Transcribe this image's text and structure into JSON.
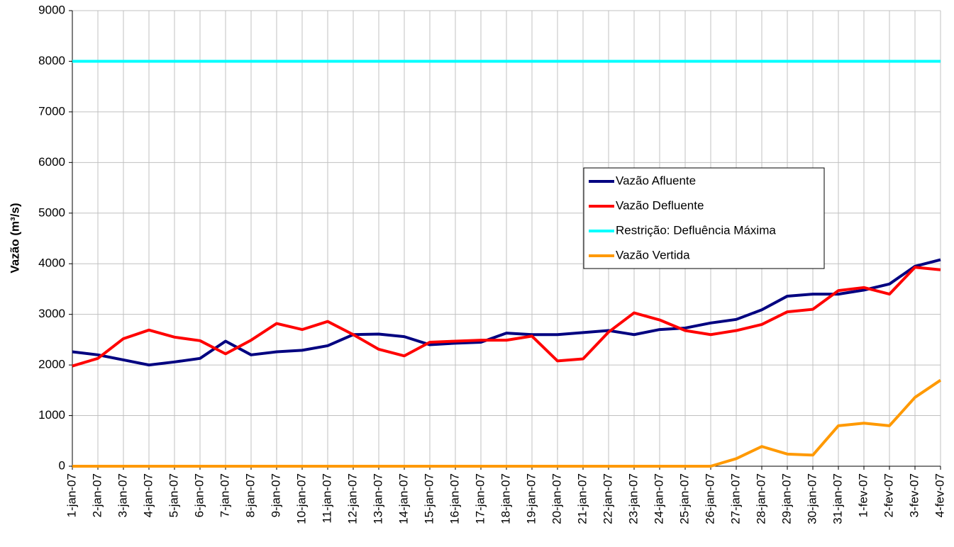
{
  "chart_data": {
    "type": "line",
    "y_label": "Vazão (m³/s)",
    "categories": [
      "1-jan-07",
      "2-jan-07",
      "3-jan-07",
      "4-jan-07",
      "5-jan-07",
      "6-jan-07",
      "7-jan-07",
      "8-jan-07",
      "9-jan-07",
      "10-jan-07",
      "11-jan-07",
      "12-jan-07",
      "13-jan-07",
      "14-jan-07",
      "15-jan-07",
      "16-jan-07",
      "17-jan-07",
      "18-jan-07",
      "19-jan-07",
      "20-jan-07",
      "21-jan-07",
      "22-jan-07",
      "23-jan-07",
      "24-jan-07",
      "25-jan-07",
      "26-jan-07",
      "27-jan-07",
      "28-jan-07",
      "29-jan-07",
      "30-jan-07",
      "31-jan-07",
      "1-fev-07",
      "2-fev-07",
      "3-fev-07",
      "4-fev-07"
    ],
    "series": [
      {
        "name": "Vazão Afluente",
        "color": "#000080",
        "values": [
          2260,
          2200,
          2100,
          2000,
          2060,
          2130,
          2470,
          2200,
          2260,
          2290,
          2380,
          2600,
          2610,
          2560,
          2400,
          2430,
          2450,
          2630,
          2600,
          2600,
          2640,
          2680,
          2600,
          2700,
          2730,
          2830,
          2900,
          3090,
          3360,
          3400,
          3400,
          3480,
          3600,
          3950,
          4080
        ]
      },
      {
        "name": "Vazão Defluente",
        "color": "#ff0000",
        "values": [
          1980,
          2130,
          2520,
          2690,
          2550,
          2480,
          2220,
          2490,
          2820,
          2700,
          2860,
          2600,
          2310,
          2180,
          2450,
          2470,
          2490,
          2490,
          2570,
          2080,
          2120,
          2650,
          3030,
          2890,
          2680,
          2600,
          2680,
          2800,
          3050,
          3100,
          3470,
          3530,
          3400,
          3930,
          3880
        ]
      },
      {
        "name": "Restrição: Defluência Máxima",
        "color": "#00ffff",
        "values": [
          8000,
          8000,
          8000,
          8000,
          8000,
          8000,
          8000,
          8000,
          8000,
          8000,
          8000,
          8000,
          8000,
          8000,
          8000,
          8000,
          8000,
          8000,
          8000,
          8000,
          8000,
          8000,
          8000,
          8000,
          8000,
          8000,
          8000,
          8000,
          8000,
          8000,
          8000,
          8000,
          8000,
          8000,
          8000
        ]
      },
      {
        "name": "Vazão Vertida",
        "color": "#ff9900",
        "values": [
          0,
          0,
          0,
          0,
          0,
          0,
          0,
          0,
          0,
          0,
          0,
          0,
          0,
          0,
          0,
          0,
          0,
          0,
          0,
          0,
          0,
          0,
          0,
          0,
          0,
          0,
          150,
          390,
          240,
          220,
          800,
          850,
          800,
          1360,
          1700
        ]
      }
    ],
    "ylim": [
      0,
      9000
    ],
    "yticks": [
      0,
      1000,
      2000,
      3000,
      4000,
      5000,
      6000,
      7000,
      8000,
      9000
    ],
    "grid": true,
    "legend": "right"
  }
}
